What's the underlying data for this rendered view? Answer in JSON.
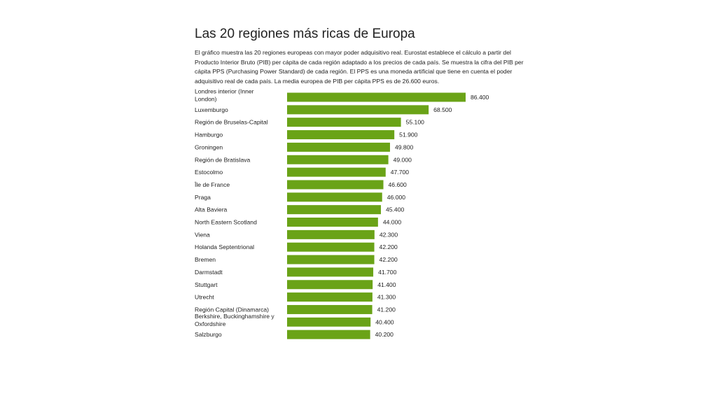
{
  "chart_data": {
    "type": "bar",
    "orientation": "horizontal",
    "title": "Las 20 regiones más ricas de Europa",
    "subtitle": "El gráfico muestra las 20 regiones europeas con mayor poder adquisitivo real. Eurostat establece el cálculo a partir del Producto Interior Bruto (PIB) per cápita de cada región adaptado a los precios de cada país. Se muestra la cifra del PIB per cápita PPS (Purchasing Power Standard) de cada región. El PPS es una moneda artificial que tiene en cuenta el poder adquisitivo real de cada país. La media europea de PIB per cápita PPS es de 26.600 euros.",
    "categories": [
      "Londres interior (Inner London)",
      "Luxemburgo",
      "Región de Bruselas-Capital",
      "Hamburgo",
      "Groningen",
      "Región de Bratislava",
      "Estocolmo",
      "Île de France",
      "Praga",
      "Alta Baviera",
      "North Eastern Scotland",
      "Viena",
      "Holanda Septentrional",
      "Bremen",
      "Darmstadt",
      "Stuttgart",
      "Utrecht",
      "Región Capital (Dinamarca)",
      "Berkshire, Buckinghamshire y Oxfordshire",
      "Salzburgo"
    ],
    "category_lines": [
      [
        "Londres interior (Inner",
        "London)"
      ],
      [
        "Luxemburgo"
      ],
      [
        "Región de Bruselas-Capital"
      ],
      [
        "Hamburgo"
      ],
      [
        "Groningen"
      ],
      [
        "Región de Bratislava"
      ],
      [
        "Estocolmo"
      ],
      [
        "Île de France"
      ],
      [
        "Praga"
      ],
      [
        "Alta Baviera"
      ],
      [
        "North Eastern Scotland"
      ],
      [
        "Viena"
      ],
      [
        "Holanda Septentrional"
      ],
      [
        "Bremen"
      ],
      [
        "Darmstadt"
      ],
      [
        "Stuttgart"
      ],
      [
        "Utrecht"
      ],
      [
        "Región Capital (Dinamarca)"
      ],
      [
        "Berkshire, Buckinghamshire y",
        "Oxfordshire"
      ],
      [
        "Salzburgo"
      ]
    ],
    "values": [
      86400,
      68500,
      55100,
      51900,
      49800,
      49000,
      47700,
      46600,
      46000,
      45400,
      44000,
      42300,
      42200,
      42200,
      41700,
      41400,
      41300,
      41200,
      40400,
      40200
    ],
    "value_labels": [
      "86.400",
      "68.500",
      "55.100",
      "51.900",
      "49.800",
      "49.000",
      "47.700",
      "46.600",
      "46.000",
      "45.400",
      "44.000",
      "42.300",
      "42.200",
      "42.200",
      "41.700",
      "41.400",
      "41.300",
      "41.200",
      "40.400",
      "40.200"
    ],
    "xlim": [
      0,
      86400
    ],
    "bar_color": "#6aa317",
    "grid": false,
    "legend": "none"
  }
}
